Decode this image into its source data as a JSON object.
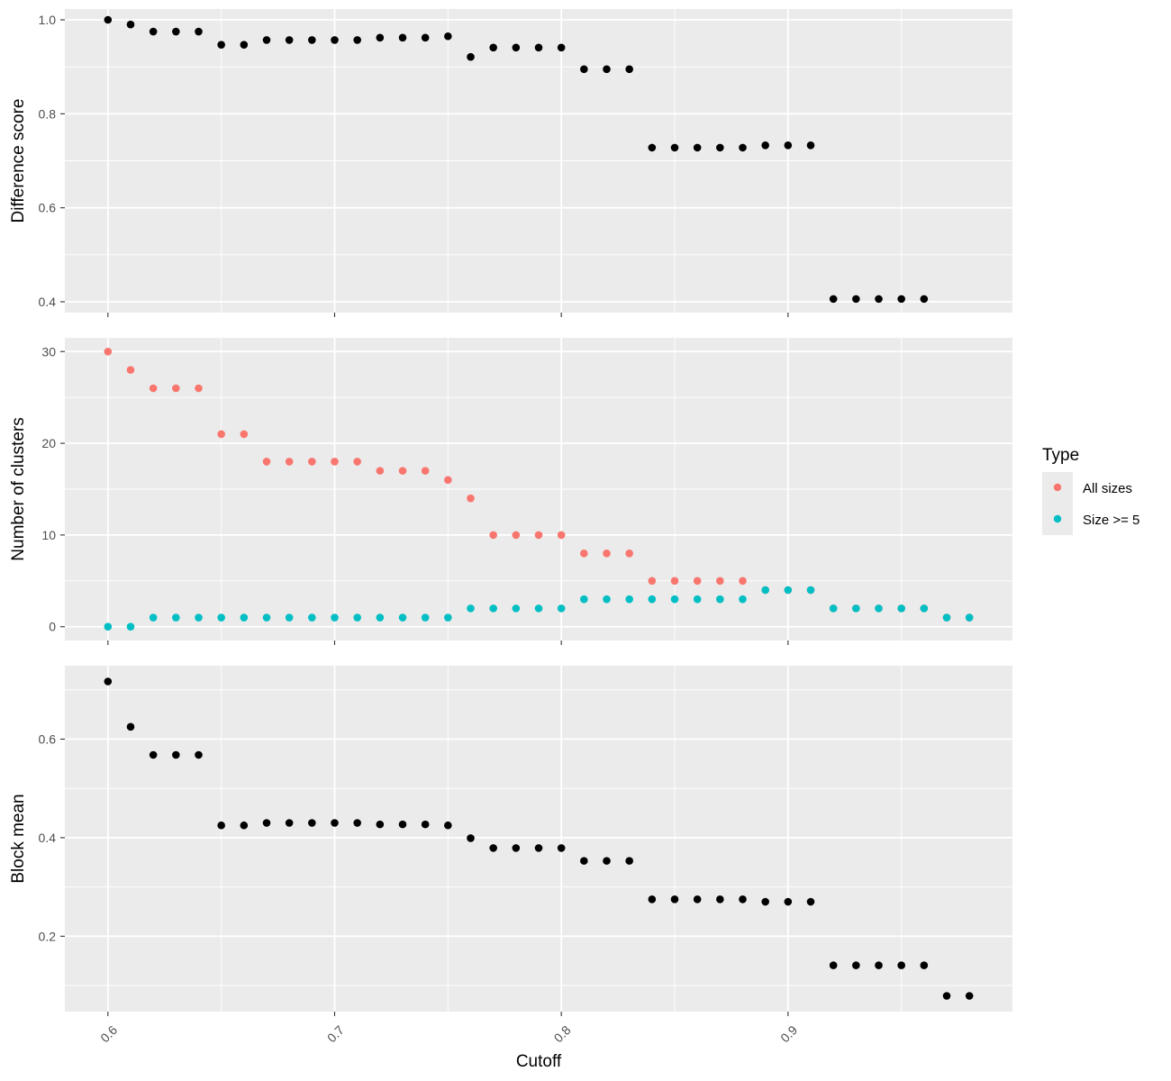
{
  "chart_data": {
    "type": "scatter",
    "xlabel": "Cutoff",
    "x_ticks": [
      0.6,
      0.7,
      0.8,
      0.9
    ],
    "x_tick_labels": [
      "0.6",
      "0.7",
      "0.8",
      "0.9"
    ],
    "xlim": [
      0.581,
      0.999
    ],
    "grid": true,
    "legend": {
      "title": "Type",
      "placement": "right",
      "entries": [
        {
          "name": "All sizes",
          "color": "#F8766D"
        },
        {
          "name": "Size >= 5",
          "color": "#00BFC4"
        }
      ]
    },
    "panels": [
      {
        "ylabel": "Difference score",
        "ylim": [
          0.377,
          1.023
        ],
        "y_ticks": [
          0.4,
          0.6,
          0.8,
          1.0
        ],
        "y_tick_labels": [
          "0.4",
          "0.6",
          "0.8",
          "1.0"
        ],
        "series": [
          {
            "color": "#000000",
            "x": [
              0.6,
              0.61,
              0.62,
              0.63,
              0.64,
              0.65,
              0.66,
              0.67,
              0.68,
              0.69,
              0.7,
              0.71,
              0.72,
              0.73,
              0.74,
              0.75,
              0.76,
              0.77,
              0.78,
              0.79,
              0.8,
              0.81,
              0.82,
              0.83,
              0.84,
              0.85,
              0.86,
              0.87,
              0.88,
              0.89,
              0.9,
              0.91,
              0.92,
              0.93,
              0.94,
              0.95,
              0.96
            ],
            "y": [
              1.0,
              0.99,
              0.975,
              0.975,
              0.975,
              0.947,
              0.947,
              0.957,
              0.957,
              0.957,
              0.957,
              0.957,
              0.962,
              0.962,
              0.962,
              0.965,
              0.921,
              0.941,
              0.941,
              0.941,
              0.941,
              0.895,
              0.895,
              0.895,
              0.728,
              0.728,
              0.728,
              0.728,
              0.728,
              0.733,
              0.733,
              0.733,
              0.406,
              0.406,
              0.406,
              0.406,
              0.406
            ]
          }
        ]
      },
      {
        "ylabel": "Number of clusters",
        "ylim": [
          -1.5,
          31.5
        ],
        "y_ticks": [
          0,
          10,
          20,
          30
        ],
        "y_tick_labels": [
          "0",
          "10",
          "20",
          "30"
        ],
        "series": [
          {
            "name": "All sizes",
            "color": "#F8766D",
            "x": [
              0.6,
              0.61,
              0.62,
              0.63,
              0.64,
              0.65,
              0.66,
              0.67,
              0.68,
              0.69,
              0.7,
              0.71,
              0.72,
              0.73,
              0.74,
              0.75,
              0.76,
              0.77,
              0.78,
              0.79,
              0.8,
              0.81,
              0.82,
              0.83,
              0.84,
              0.85,
              0.86,
              0.87,
              0.88,
              0.89,
              0.9,
              0.91,
              0.92,
              0.93,
              0.94,
              0.95,
              0.96,
              0.97,
              0.98
            ],
            "y": [
              30,
              28,
              26,
              26,
              26,
              21,
              21,
              18,
              18,
              18,
              18,
              18,
              17,
              17,
              17,
              16,
              14,
              10,
              10,
              10,
              10,
              8,
              8,
              8,
              5,
              5,
              5,
              5,
              5,
              4,
              4,
              4,
              2,
              2,
              2,
              2,
              2,
              1,
              1
            ]
          },
          {
            "name": "Size >= 5",
            "color": "#00BFC4",
            "x": [
              0.6,
              0.61,
              0.62,
              0.63,
              0.64,
              0.65,
              0.66,
              0.67,
              0.68,
              0.69,
              0.7,
              0.71,
              0.72,
              0.73,
              0.74,
              0.75,
              0.76,
              0.77,
              0.78,
              0.79,
              0.8,
              0.81,
              0.82,
              0.83,
              0.84,
              0.85,
              0.86,
              0.87,
              0.88,
              0.89,
              0.9,
              0.91,
              0.92,
              0.93,
              0.94,
              0.95,
              0.96,
              0.97,
              0.98
            ],
            "y": [
              0,
              0,
              1,
              1,
              1,
              1,
              1,
              1,
              1,
              1,
              1,
              1,
              1,
              1,
              1,
              1,
              2,
              2,
              2,
              2,
              2,
              3,
              3,
              3,
              3,
              3,
              3,
              3,
              3,
              4,
              4,
              4,
              2,
              2,
              2,
              2,
              2,
              1,
              1
            ]
          }
        ]
      },
      {
        "ylabel": "Block mean",
        "ylim": [
          0.047,
          0.749
        ],
        "y_ticks": [
          0.2,
          0.4,
          0.6
        ],
        "y_tick_labels": [
          "0.2",
          "0.4",
          "0.6"
        ],
        "series": [
          {
            "color": "#000000",
            "x": [
              0.6,
              0.61,
              0.62,
              0.63,
              0.64,
              0.65,
              0.66,
              0.67,
              0.68,
              0.69,
              0.7,
              0.71,
              0.72,
              0.73,
              0.74,
              0.75,
              0.76,
              0.77,
              0.78,
              0.79,
              0.8,
              0.81,
              0.82,
              0.83,
              0.84,
              0.85,
              0.86,
              0.87,
              0.88,
              0.89,
              0.9,
              0.91,
              0.92,
              0.93,
              0.94,
              0.95,
              0.96,
              0.97,
              0.98
            ],
            "y": [
              0.717,
              0.625,
              0.568,
              0.568,
              0.568,
              0.425,
              0.425,
              0.43,
              0.43,
              0.43,
              0.43,
              0.43,
              0.427,
              0.427,
              0.427,
              0.425,
              0.399,
              0.379,
              0.379,
              0.379,
              0.379,
              0.353,
              0.353,
              0.353,
              0.275,
              0.275,
              0.275,
              0.275,
              0.275,
              0.27,
              0.27,
              0.27,
              0.141,
              0.141,
              0.141,
              0.141,
              0.141,
              0.079,
              0.079
            ]
          }
        ]
      }
    ]
  }
}
